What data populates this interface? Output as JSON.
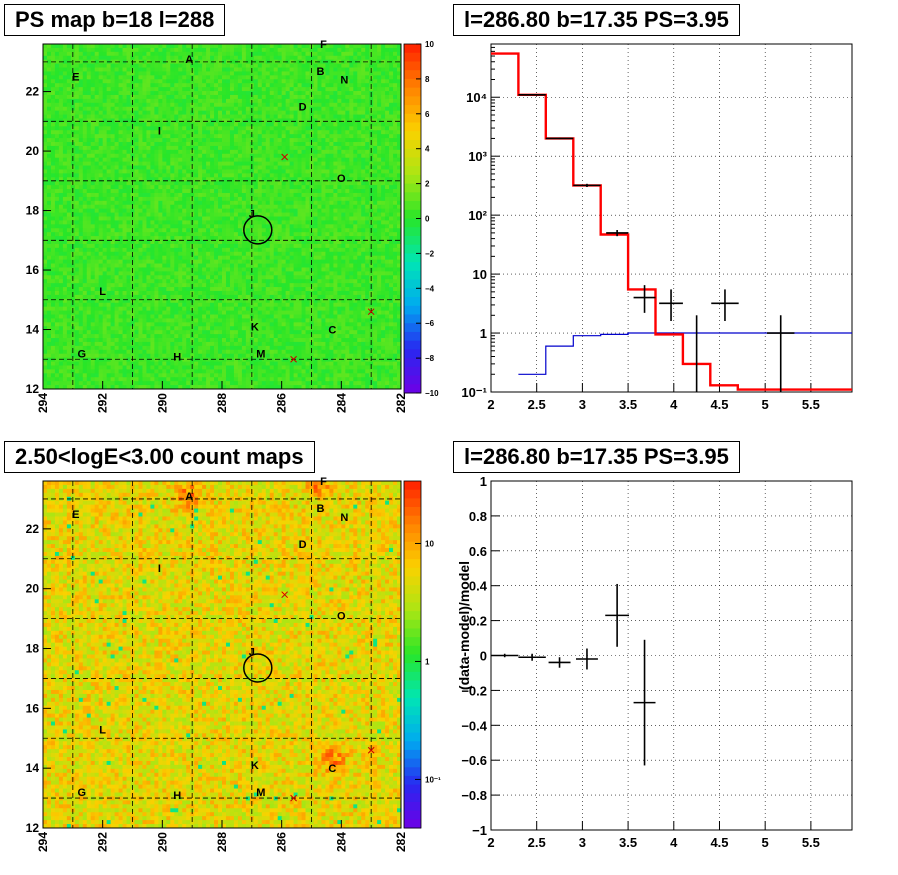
{
  "panels": {
    "ps_map": {
      "title": "PS map b=18 l=288",
      "x_ticks": [
        "294",
        "292",
        "290",
        "288",
        "286",
        "284",
        "282"
      ],
      "y_ticks": [
        "12",
        "14",
        "16",
        "18",
        "20",
        "22"
      ],
      "colorbar_ticks": [
        "10",
        "8",
        "6",
        "4",
        "2",
        "0",
        "−2",
        "−4",
        "−6",
        "−8",
        "−10"
      ],
      "labels": [
        "A",
        "B",
        "C",
        "D",
        "E",
        "F",
        "G",
        "H",
        "I",
        "J",
        "K",
        "L",
        "M",
        "N",
        "O"
      ]
    },
    "spectrum": {
      "title": "l=286.80 b=17.35 PS=3.95",
      "x_ticks": [
        "2",
        "2.5",
        "3",
        "3.5",
        "4",
        "4.5",
        "5",
        "5.5"
      ],
      "y_ticks": [
        "10⁻¹",
        "1",
        "10",
        "10²",
        "10³",
        "10⁴"
      ]
    },
    "count_map": {
      "title": "2.50<logE<3.00 count maps",
      "x_ticks": [
        "294",
        "292",
        "290",
        "288",
        "286",
        "284",
        "282"
      ],
      "y_ticks": [
        "12",
        "14",
        "16",
        "18",
        "20",
        "22"
      ],
      "colorbar_ticks": [
        "10",
        "1",
        "10⁻¹"
      ],
      "labels": [
        "A",
        "B",
        "C",
        "D",
        "E",
        "F",
        "G",
        "H",
        "I",
        "J",
        "K",
        "L",
        "M",
        "N",
        "O"
      ]
    },
    "residual": {
      "title": "l=286.80 b=17.35 PS=3.95",
      "ylabel": "(data-model)/model",
      "x_ticks": [
        "2",
        "2.5",
        "3",
        "3.5",
        "4",
        "4.5",
        "5",
        "5.5"
      ],
      "y_ticks": [
        "−1",
        "−0.8",
        "−0.6",
        "−0.4",
        "−0.2",
        "0",
        "0.2",
        "0.4",
        "0.6",
        "0.8",
        "1"
      ]
    }
  },
  "chart_data": [
    {
      "type": "heatmap",
      "title": "PS map b=18 l=288",
      "xlim": [
        294,
        282
      ],
      "ylim": [
        12,
        23.6
      ],
      "zlim": [
        -10,
        10
      ],
      "marker_circle": {
        "l": 286.8,
        "b": 17.35
      },
      "cross_markers": [
        {
          "l": 285.9,
          "b": 19.8
        },
        {
          "l": 283.0,
          "b": 14.6
        },
        {
          "l": 285.6,
          "b": 13.0
        }
      ],
      "source_labels": [
        {
          "text": "A",
          "l": 289.1,
          "b": 23.1
        },
        {
          "text": "B",
          "l": 284.7,
          "b": 22.7
        },
        {
          "text": "C",
          "l": 284.3,
          "b": 14.0
        },
        {
          "text": "D",
          "l": 285.3,
          "b": 21.5
        },
        {
          "text": "E",
          "l": 292.9,
          "b": 22.5
        },
        {
          "text": "F",
          "l": 284.6,
          "b": 23.6
        },
        {
          "text": "G",
          "l": 292.7,
          "b": 13.2
        },
        {
          "text": "H",
          "l": 289.5,
          "b": 13.1
        },
        {
          "text": "I",
          "l": 290.1,
          "b": 20.7
        },
        {
          "text": "J",
          "l": 287.0,
          "b": 17.9
        },
        {
          "text": "K",
          "l": 286.9,
          "b": 14.1
        },
        {
          "text": "L",
          "l": 292.0,
          "b": 15.3
        },
        {
          "text": "M",
          "l": 286.7,
          "b": 13.2
        },
        {
          "text": "N",
          "l": 283.9,
          "b": 22.4
        },
        {
          "text": "O",
          "l": 284.0,
          "b": 19.1
        }
      ]
    },
    {
      "type": "line",
      "title": "l=286.80 b=17.35 PS=3.95",
      "xlim": [
        2,
        5.95
      ],
      "ylim": [
        0.1,
        80000
      ],
      "log_y": true,
      "series": [
        {
          "color": "#ff0000",
          "edges": [
            2.0,
            2.3,
            2.6,
            2.9,
            3.2,
            3.5,
            3.8,
            4.1,
            4.4,
            4.7,
            5.95
          ],
          "values": [
            55000,
            11000,
            2000,
            320,
            47,
            5.5,
            0.95,
            0.3,
            0.13,
            0.11
          ]
        },
        {
          "color": "#0000cc",
          "edges": [
            2.3,
            2.6,
            2.9,
            3.2,
            3.5,
            3.8,
            4.1,
            4.4,
            4.7,
            5.0,
            5.3,
            5.95
          ],
          "values": [
            0.2,
            0.6,
            0.9,
            0.95,
            1.0,
            1.0,
            1.0,
            1.0,
            1.0,
            1.0,
            1.0
          ]
        },
        {
          "color": "#000000",
          "points": [
            {
              "x": 2.45,
              "y": 11000,
              "xerr": 0.15,
              "ylo": 10800,
              "yhi": 11200
            },
            {
              "x": 2.75,
              "y": 2000,
              "xerr": 0.15,
              "ylo": 1950,
              "yhi": 2050
            },
            {
              "x": 3.05,
              "y": 320,
              "xerr": 0.15,
              "ylo": 300,
              "yhi": 340
            },
            {
              "x": 3.38,
              "y": 50,
              "xerr": 0.12,
              "ylo": 44,
              "yhi": 56
            },
            {
              "x": 3.68,
              "y": 4.0,
              "xerr": 0.12,
              "ylo": 2.2,
              "yhi": 6.5
            },
            {
              "x": 3.97,
              "y": 3.2,
              "xerr": 0.13,
              "ylo": 1.6,
              "yhi": 5.5
            },
            {
              "x": 4.25,
              "y": 0.1,
              "xerr": 0,
              "ylo": 0.1,
              "yhi": 2.0
            },
            {
              "x": 4.56,
              "y": 3.2,
              "xerr": 0.15,
              "ylo": 1.6,
              "yhi": 5.5
            },
            {
              "x": 5.17,
              "y": 1.0,
              "xerr": 0.15,
              "ylo": 0.1,
              "yhi": 2.0
            }
          ]
        }
      ]
    },
    {
      "type": "heatmap",
      "title": "2.50<logE<3.00 count maps",
      "xlim": [
        294,
        282
      ],
      "ylim": [
        12,
        23.6
      ],
      "log_z": true,
      "zlim": [
        0.05,
        40
      ],
      "hotspots": [
        {
          "l": 289.1,
          "b": 23.1
        },
        {
          "l": 284.3,
          "b": 14.3
        },
        {
          "l": 284.8,
          "b": 23.5
        }
      ],
      "marker_circle": {
        "l": 286.8,
        "b": 17.35
      }
    },
    {
      "type": "scatter",
      "title": "l=286.80 b=17.35 PS=3.95",
      "ylabel": "(data-model)/model",
      "xlim": [
        2,
        5.95
      ],
      "ylim": [
        -1,
        1
      ],
      "points": [
        {
          "x": 2.15,
          "y": 0.0,
          "xerr": 0.15,
          "yerr": 0.01
        },
        {
          "x": 2.45,
          "y": -0.01,
          "xerr": 0.15,
          "yerr": 0.02
        },
        {
          "x": 2.75,
          "y": -0.04,
          "xerr": 0.12,
          "yerr": 0.03
        },
        {
          "x": 3.05,
          "y": -0.02,
          "xerr": 0.12,
          "yerr": 0.06
        },
        {
          "x": 3.38,
          "y": 0.23,
          "xerr": 0.13,
          "yerr": 0.18
        },
        {
          "x": 3.68,
          "y": -0.27,
          "xerr": 0.12,
          "yerr": 0.36
        }
      ]
    }
  ],
  "colors": {
    "frame": "#000000",
    "grid": "#000000",
    "accent_red": "#ff0000",
    "accent_blue": "#0000cc"
  }
}
